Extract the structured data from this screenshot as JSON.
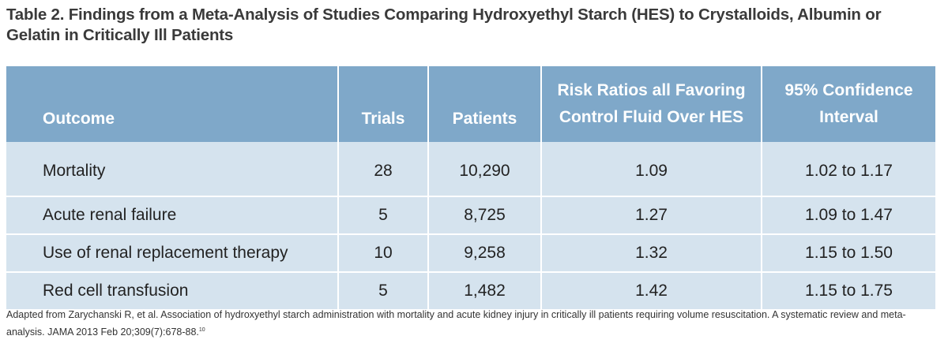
{
  "title": "Table 2. Findings from a Meta-Analysis of Studies Comparing Hydroxyethyl Starch (HES) to Crystalloids, Albumin or Gelatin in Critically Ill Patients",
  "table": {
    "headers": [
      {
        "line1": "",
        "line2": "Outcome"
      },
      {
        "line1": "",
        "line2": "Trials"
      },
      {
        "line1": "",
        "line2": "Patients"
      },
      {
        "line1": "Risk Ratios all Favoring",
        "line2": "Control Fluid Over HES"
      },
      {
        "line1": "95% Confidence",
        "line2": "Interval"
      }
    ],
    "rows": [
      {
        "outcome": "Mortality",
        "trials": "28",
        "patients": "10,290",
        "risk_ratio": "1.09",
        "ci": "1.02 to 1.17"
      },
      {
        "outcome": "Acute renal failure",
        "trials": "5",
        "patients": "8,725",
        "risk_ratio": "1.27",
        "ci": "1.09 to 1.47"
      },
      {
        "outcome": "Use of renal replacement therapy",
        "trials": "10",
        "patients": "9,258",
        "risk_ratio": "1.32",
        "ci": "1.15 to 1.50"
      },
      {
        "outcome": "Red cell transfusion",
        "trials": "5",
        "patients": "1,482",
        "risk_ratio": "1.42",
        "ci": "1.15 to 1.75"
      }
    ]
  },
  "footnote": {
    "text": "Adapted from Zarychanski R, et al. Association of hydroxyethyl starch administration with mortality and acute kidney injury in critically ill patients requiring volume resuscitation. A systematic review and meta-analysis. JAMA 2013 Feb 20;309(7):678-88.",
    "reference_marker": "10"
  },
  "colors": {
    "header_bg": "#7fa8c9",
    "row_bg": "#d5e3ee",
    "title_text": "#3a3a3a"
  }
}
